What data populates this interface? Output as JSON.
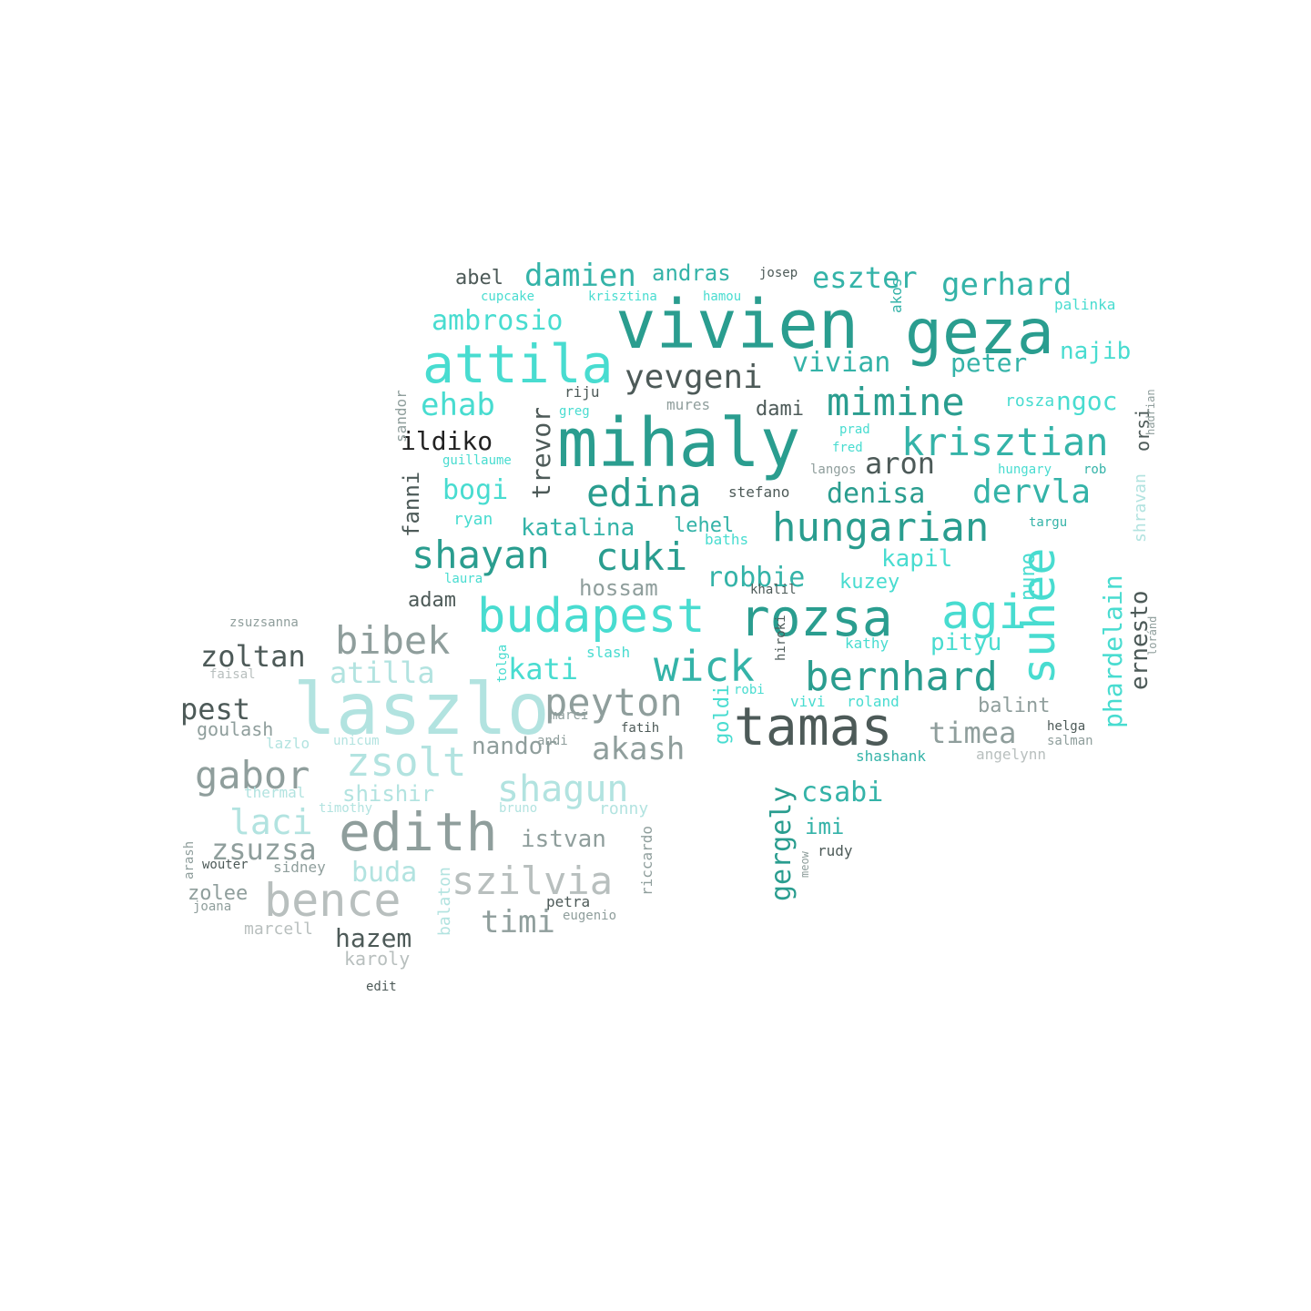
{
  "word_cloud": {
    "palette": {
      "dark_teal": "#2a9d8f",
      "teal": "#34b3a8",
      "turquoise": "#48dcd0",
      "pale_teal": "#b2e3e0",
      "dark_gray": "#4d5a58",
      "gray": "#8f9e9c",
      "light_gray": "#b8bfbe",
      "near_black": "#222222"
    },
    "words": [
      {
        "text": "vivien",
        "color": "dark_teal"
      },
      {
        "text": "mihaly",
        "color": "dark_teal"
      },
      {
        "text": "geza",
        "color": "dark_teal"
      },
      {
        "text": "attila",
        "color": "turquoise"
      },
      {
        "text": "laszlo",
        "color": "pale_teal"
      },
      {
        "text": "tamas",
        "color": "dark_gray"
      },
      {
        "text": "rozsa",
        "color": "dark_teal"
      },
      {
        "text": "budapest",
        "color": "turquoise"
      },
      {
        "text": "edith",
        "color": "gray"
      },
      {
        "text": "hungarian",
        "color": "dark_teal"
      },
      {
        "text": "bernhard",
        "color": "dark_teal"
      },
      {
        "text": "krisztian",
        "color": "teal"
      },
      {
        "text": "mimine",
        "color": "dark_teal"
      },
      {
        "text": "wick",
        "color": "teal"
      },
      {
        "text": "peyton",
        "color": "gray"
      },
      {
        "text": "shayan",
        "color": "dark_teal"
      },
      {
        "text": "cuki",
        "color": "dark_teal"
      },
      {
        "text": "edina",
        "color": "dark_teal"
      },
      {
        "text": "agi",
        "color": "turquoise"
      },
      {
        "text": "suhee",
        "color": "turquoise"
      },
      {
        "text": "bence",
        "color": "light_gray"
      },
      {
        "text": "bibek",
        "color": "gray"
      },
      {
        "text": "zsolt",
        "color": "pale_teal"
      },
      {
        "text": "gabor",
        "color": "gray"
      },
      {
        "text": "shagun",
        "color": "pale_teal"
      },
      {
        "text": "szilvia",
        "color": "light_gray"
      },
      {
        "text": "yevgeni",
        "color": "dark_gray"
      },
      {
        "text": "damien",
        "color": "teal"
      },
      {
        "text": "eszter",
        "color": "teal"
      },
      {
        "text": "gerhard",
        "color": "teal"
      },
      {
        "text": "ambrosio",
        "color": "turquoise"
      },
      {
        "text": "ehab",
        "color": "turquoise"
      },
      {
        "text": "vivian",
        "color": "teal"
      },
      {
        "text": "peter",
        "color": "teal"
      },
      {
        "text": "dervla",
        "color": "teal"
      },
      {
        "text": "denisa",
        "color": "dark_teal"
      },
      {
        "text": "aron",
        "color": "dark_gray"
      },
      {
        "text": "timea",
        "color": "gray"
      },
      {
        "text": "akash",
        "color": "gray"
      },
      {
        "text": "pest",
        "color": "dark_gray"
      },
      {
        "text": "zoltan",
        "color": "dark_gray"
      },
      {
        "text": "laci",
        "color": "pale_teal"
      },
      {
        "text": "zsuzsa",
        "color": "gray"
      },
      {
        "text": "atilla",
        "color": "pale_teal"
      },
      {
        "text": "hazem",
        "color": "dark_gray"
      },
      {
        "text": "timi",
        "color": "gray"
      },
      {
        "text": "istvan",
        "color": "gray"
      },
      {
        "text": "buda",
        "color": "pale_teal"
      },
      {
        "text": "kati",
        "color": "turquoise"
      },
      {
        "text": "katalina",
        "color": "teal"
      },
      {
        "text": "bogi",
        "color": "turquoise"
      },
      {
        "text": "robbie",
        "color": "teal"
      },
      {
        "text": "csabi",
        "color": "teal"
      },
      {
        "text": "ngoc",
        "color": "turquoise"
      },
      {
        "text": "najib",
        "color": "turquoise"
      },
      {
        "text": "pityu",
        "color": "turquoise"
      },
      {
        "text": "kapil",
        "color": "turquoise"
      },
      {
        "text": "andras",
        "color": "teal"
      },
      {
        "text": "abel",
        "color": "dark_gray"
      },
      {
        "text": "ildiko",
        "color": "near_black"
      },
      {
        "text": "hossam",
        "color": "gray"
      },
      {
        "text": "adam",
        "color": "dark_gray"
      },
      {
        "text": "nandor",
        "color": "gray"
      },
      {
        "text": "balint",
        "color": "gray"
      },
      {
        "text": "karoly",
        "color": "light_gray"
      },
      {
        "text": "goulash",
        "color": "gray"
      },
      {
        "text": "imi",
        "color": "teal"
      },
      {
        "text": "lehel",
        "color": "teal"
      },
      {
        "text": "dami",
        "color": "dark_gray"
      },
      {
        "text": "rosza",
        "color": "turquoise"
      },
      {
        "text": "kuzey",
        "color": "turquoise"
      },
      {
        "text": "gergely",
        "color": "dark_teal"
      },
      {
        "text": "trevor",
        "color": "dark_gray"
      },
      {
        "text": "fanni",
        "color": "dark_gray"
      },
      {
        "text": "phardelain",
        "color": "turquoise"
      },
      {
        "text": "ernesto",
        "color": "dark_gray"
      },
      {
        "text": "goldi",
        "color": "turquoise"
      },
      {
        "text": "nuno",
        "color": "turquoise"
      },
      {
        "text": "shravan",
        "color": "pale_teal"
      },
      {
        "text": "orsi",
        "color": "dark_gray"
      },
      {
        "text": "shishir",
        "color": "pale_teal"
      },
      {
        "text": "zolee",
        "color": "gray"
      },
      {
        "text": "marcell",
        "color": "light_gray"
      },
      {
        "text": "ryan",
        "color": "turquoise"
      },
      {
        "text": "vivi",
        "color": "turquoise"
      },
      {
        "text": "roland",
        "color": "turquoise"
      },
      {
        "text": "shashank",
        "color": "teal"
      },
      {
        "text": "angelynn",
        "color": "light_gray"
      },
      {
        "text": "helga",
        "color": "dark_gray"
      },
      {
        "text": "salman",
        "color": "gray"
      },
      {
        "text": "slash",
        "color": "turquoise"
      },
      {
        "text": "tolga",
        "color": "turquoise"
      },
      {
        "text": "targu",
        "color": "teal"
      },
      {
        "text": "rob",
        "color": "teal"
      },
      {
        "text": "hungary",
        "color": "turquoise"
      },
      {
        "text": "riju",
        "color": "dark_gray"
      },
      {
        "text": "mures",
        "color": "gray"
      },
      {
        "text": "greg",
        "color": "turquoise"
      },
      {
        "text": "prad",
        "color": "turquoise"
      },
      {
        "text": "fred",
        "color": "turquoise"
      },
      {
        "text": "langos",
        "color": "gray"
      },
      {
        "text": "stefano",
        "color": "dark_gray"
      },
      {
        "text": "kathy",
        "color": "turquoise"
      },
      {
        "text": "cupcake",
        "color": "turquoise"
      },
      {
        "text": "krisztina",
        "color": "turquoise"
      },
      {
        "text": "hamou",
        "color": "turquoise"
      },
      {
        "text": "josep",
        "color": "dark_gray"
      },
      {
        "text": "akos",
        "color": "teal"
      },
      {
        "text": "palinka",
        "color": "turquoise"
      },
      {
        "text": "sandor",
        "color": "gray"
      },
      {
        "text": "guillaume",
        "color": "turquoise"
      },
      {
        "text": "laura",
        "color": "turquoise"
      },
      {
        "text": "baths",
        "color": "turquoise"
      },
      {
        "text": "khalil",
        "color": "dark_gray"
      },
      {
        "text": "hiroki",
        "color": "dark_gray"
      },
      {
        "text": "robi",
        "color": "turquoise"
      },
      {
        "text": "andi",
        "color": "gray"
      },
      {
        "text": "marci",
        "color": "gray"
      },
      {
        "text": "ronny",
        "color": "pale_teal"
      },
      {
        "text": "bruno",
        "color": "pale_teal"
      },
      {
        "text": "riccardo",
        "color": "gray"
      },
      {
        "text": "balaton",
        "color": "pale_teal"
      },
      {
        "text": "eugenio",
        "color": "gray"
      },
      {
        "text": "petra",
        "color": "dark_gray"
      },
      {
        "text": "fatih",
        "color": "dark_gray"
      },
      {
        "text": "edit",
        "color": "dark_gray"
      },
      {
        "text": "sidney",
        "color": "gray"
      },
      {
        "text": "joana",
        "color": "gray"
      },
      {
        "text": "wouter",
        "color": "dark_gray"
      },
      {
        "text": "arash",
        "color": "gray"
      },
      {
        "text": "faisal",
        "color": "light_gray"
      },
      {
        "text": "zsuzsanna",
        "color": "gray"
      },
      {
        "text": "thermal",
        "color": "pale_teal"
      },
      {
        "text": "timothy",
        "color": "pale_teal"
      },
      {
        "text": "unicum",
        "color": "pale_teal"
      },
      {
        "text": "lazlo",
        "color": "pale_teal"
      },
      {
        "text": "rudy",
        "color": "dark_gray"
      },
      {
        "text": "meow",
        "color": "gray"
      },
      {
        "text": "loránd",
        "color": "gray"
      },
      {
        "text": "hadrian",
        "color": "gray"
      }
    ]
  }
}
